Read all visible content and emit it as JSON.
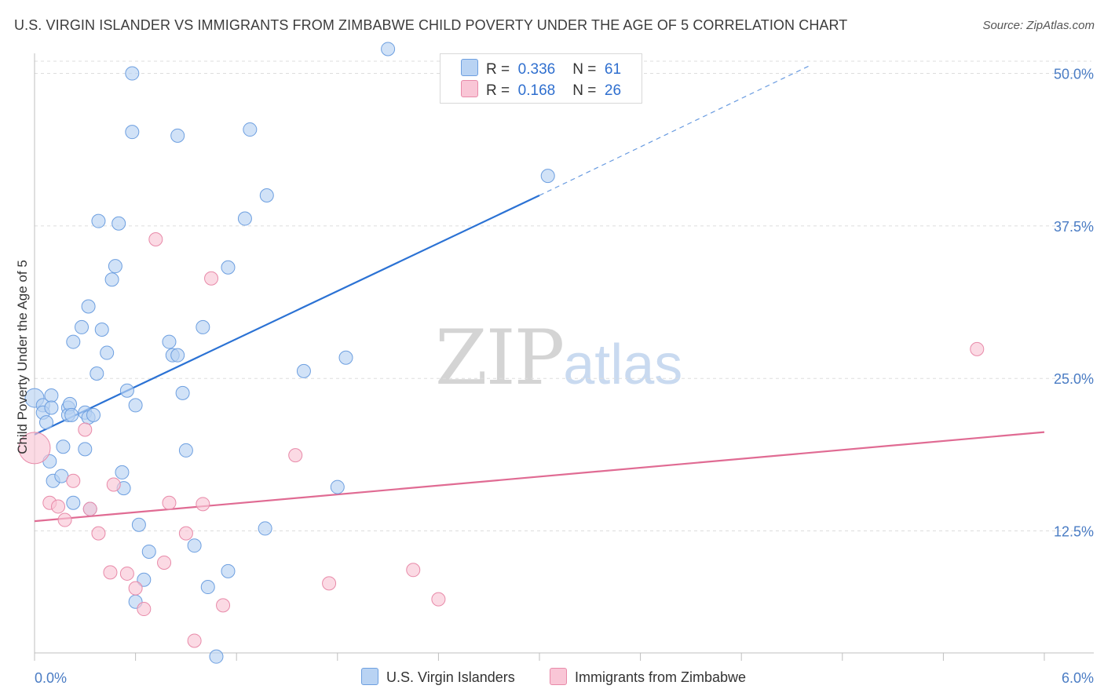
{
  "title": "U.S. VIRGIN ISLANDER VS IMMIGRANTS FROM ZIMBABWE CHILD POVERTY UNDER THE AGE OF 5 CORRELATION CHART",
  "source": "Source: ZipAtlas.com",
  "watermark": {
    "zip": "ZIP",
    "atlas": "atlas"
  },
  "legend_top": [
    {
      "r_label": "R =",
      "r_value": "0.336",
      "n_label": "N =",
      "n_value": "61"
    },
    {
      "r_label": "R =",
      "r_value": "0.168",
      "n_label": "N =",
      "n_value": "26"
    }
  ],
  "colors": {
    "blue_fill": "#b9d3f3",
    "blue_stroke": "#6d9fe0",
    "blue_line": "#2b72d4",
    "pink_fill": "#f9c6d6",
    "pink_stroke": "#e88aa9",
    "pink_line": "#e06b93",
    "grid": "#dddddd",
    "tick_text": "#4a7cc4"
  },
  "chart_data": {
    "type": "scatter",
    "title": "U.S. VIRGIN ISLANDER VS IMMIGRANTS FROM ZIMBABWE CHILD POVERTY UNDER THE AGE OF 5 CORRELATION CHART",
    "xlabel": "",
    "ylabel": "Child Poverty Under the Age of 5",
    "xlim": [
      0,
      6
    ],
    "ylim": [
      2.5,
      51
    ],
    "x_tick_labels": [
      "0.0%",
      "6.0%"
    ],
    "y_ticks": [
      12.5,
      25.0,
      37.5,
      50.0
    ],
    "y_tick_labels": [
      "12.5%",
      "25.0%",
      "37.5%",
      "50.0%"
    ],
    "grid": "horizontal dashed",
    "legend_position": "bottom-center",
    "series": [
      {
        "name": "U.S. Virgin Islanders",
        "r": 0.336,
        "n": 61,
        "trend": {
          "x0": 0.0,
          "y0": 20.4,
          "x1": 3.0,
          "y1": 40.0,
          "dashed_to_x": 4.6,
          "dashed_to_y": 50.6
        },
        "points": [
          [
            0.0,
            23.4
          ],
          [
            0.05,
            22.8
          ],
          [
            0.05,
            22.2
          ],
          [
            0.07,
            21.4
          ],
          [
            0.1,
            23.6
          ],
          [
            0.1,
            22.6
          ],
          [
            0.09,
            18.2
          ],
          [
            0.11,
            16.6
          ],
          [
            0.16,
            17.0
          ],
          [
            0.17,
            19.4
          ],
          [
            0.2,
            22.6
          ],
          [
            0.2,
            22.0
          ],
          [
            0.21,
            22.9
          ],
          [
            0.22,
            22.0
          ],
          [
            0.23,
            14.8
          ],
          [
            0.3,
            22.2
          ],
          [
            0.32,
            21.8
          ],
          [
            0.35,
            22.0
          ],
          [
            0.3,
            19.2
          ],
          [
            0.33,
            14.3
          ],
          [
            0.37,
            25.4
          ],
          [
            0.23,
            28.0
          ],
          [
            0.28,
            29.2
          ],
          [
            0.32,
            30.9
          ],
          [
            0.38,
            37.9
          ],
          [
            0.4,
            29.0
          ],
          [
            0.43,
            27.1
          ],
          [
            0.46,
            33.1
          ],
          [
            0.48,
            34.2
          ],
          [
            0.5,
            37.7
          ],
          [
            0.52,
            17.3
          ],
          [
            0.53,
            16.0
          ],
          [
            0.55,
            24.0
          ],
          [
            0.6,
            22.8
          ],
          [
            0.8,
            28.0
          ],
          [
            0.82,
            26.9
          ],
          [
            0.85,
            26.9
          ],
          [
            0.88,
            23.8
          ],
          [
            0.9,
            19.1
          ],
          [
            0.95,
            11.3
          ],
          [
            1.0,
            29.2
          ],
          [
            0.6,
            6.7
          ],
          [
            0.62,
            13.0
          ],
          [
            0.65,
            8.5
          ],
          [
            0.68,
            10.8
          ],
          [
            1.03,
            7.9
          ],
          [
            1.08,
            2.2
          ],
          [
            1.15,
            9.2
          ],
          [
            1.15,
            34.1
          ],
          [
            1.25,
            38.1
          ],
          [
            1.38,
            40.0
          ],
          [
            1.37,
            12.7
          ],
          [
            1.28,
            45.4
          ],
          [
            0.58,
            45.2
          ],
          [
            0.85,
            44.9
          ],
          [
            1.6,
            25.6
          ],
          [
            1.8,
            16.1
          ],
          [
            1.85,
            26.7
          ],
          [
            2.1,
            52.0
          ],
          [
            3.05,
            41.6
          ],
          [
            0.58,
            50.0
          ]
        ]
      },
      {
        "name": "Immigrants from Zimbabwe",
        "r": 0.168,
        "n": 26,
        "trend": {
          "x0": 0.0,
          "y0": 13.3,
          "x1": 6.0,
          "y1": 20.6
        },
        "points": [
          [
            0.0,
            19.3
          ],
          [
            0.09,
            14.8
          ],
          [
            0.14,
            14.5
          ],
          [
            0.18,
            13.4
          ],
          [
            0.23,
            16.6
          ],
          [
            0.3,
            20.8
          ],
          [
            0.33,
            14.3
          ],
          [
            0.38,
            12.3
          ],
          [
            0.45,
            9.1
          ],
          [
            0.47,
            16.3
          ],
          [
            0.55,
            9.0
          ],
          [
            0.6,
            7.8
          ],
          [
            0.65,
            6.1
          ],
          [
            0.72,
            36.4
          ],
          [
            0.77,
            9.9
          ],
          [
            0.8,
            14.8
          ],
          [
            0.9,
            12.3
          ],
          [
            0.95,
            3.5
          ],
          [
            1.0,
            14.7
          ],
          [
            1.05,
            33.2
          ],
          [
            1.12,
            6.4
          ],
          [
            1.55,
            18.7
          ],
          [
            1.75,
            8.2
          ],
          [
            2.25,
            9.3
          ],
          [
            2.4,
            6.9
          ],
          [
            5.6,
            27.4
          ]
        ]
      }
    ]
  }
}
